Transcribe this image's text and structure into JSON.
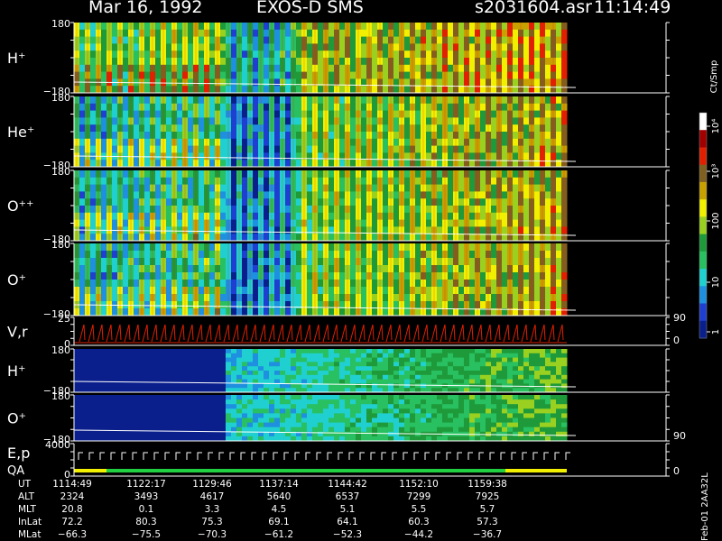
{
  "header": {
    "date": "Mar 16, 1992",
    "mission": "EXOS-D SMS",
    "file": "s2031604.asr",
    "time": "11:14:49"
  },
  "colorbar": {
    "unit": "Ct/Smp",
    "ticks": [
      "1",
      "10",
      "100",
      "10³",
      "10⁴"
    ],
    "colors": [
      "#0a1f8c",
      "#1f3fd0",
      "#1f8fe0",
      "#20d0d0",
      "#28c060",
      "#1e9a3a",
      "#9ad020",
      "#f0f000",
      "#c8a000",
      "#806020",
      "#e02000",
      "#a00000",
      "#ffffff"
    ]
  },
  "panels": [
    {
      "label": "H⁺",
      "ymax": "180",
      "ymin": "−180",
      "kind": "spec",
      "variant": 0
    },
    {
      "label": "He⁺",
      "ymax": "180",
      "ymin": "−180",
      "kind": "spec",
      "variant": 1
    },
    {
      "label": "O⁺⁺",
      "ymax": "180",
      "ymin": "−180",
      "kind": "spec",
      "variant": 2
    },
    {
      "label": "O⁺",
      "ymax": "180",
      "ymin": "−180",
      "kind": "spec",
      "variant": 3
    },
    {
      "label": "V,r",
      "ymax": "25",
      "ymin": "0",
      "kind": "line",
      "right_top": "90",
      "right_bottom": "0"
    },
    {
      "label": "H⁺",
      "ymax": "180",
      "ymin": "−180",
      "kind": "spec2",
      "variant": 4
    },
    {
      "label": "O⁺",
      "ymax": "180",
      "ymin": "−180",
      "kind": "spec2",
      "variant": 5,
      "right_bottom": "90"
    },
    {
      "label": "E,p",
      "label2": "QA",
      "ymax": "4000",
      "ymin": "0",
      "kind": "qa",
      "right_bottom": "0"
    }
  ],
  "ephemeris": {
    "rows": [
      {
        "name": "UT",
        "values": [
          "1114:49",
          "1122:17",
          "1129:46",
          "1137:14",
          "1144:42",
          "1152:10",
          "1159:38"
        ]
      },
      {
        "name": "ALT",
        "values": [
          "2324",
          "3493",
          "4617",
          "5640",
          "6537",
          "7299",
          "7925"
        ]
      },
      {
        "name": "MLT",
        "values": [
          "20.8",
          "0.1",
          "3.3",
          "4.5",
          "5.1",
          "5.5",
          "5.7"
        ]
      },
      {
        "name": "InLat",
        "values": [
          "72.2",
          "80.3",
          "75.3",
          "69.1",
          "64.1",
          "60.3",
          "57.3"
        ]
      },
      {
        "name": "MLat",
        "values": [
          "−66.3",
          "−75.5",
          "−70.3",
          "−61.2",
          "−52.3",
          "−44.2",
          "−36.7"
        ]
      }
    ]
  },
  "footer": {
    "stamp": "Feb-01 2AA32L"
  },
  "chart_data": {
    "type": "heatmap",
    "title": "Mar 16, 1992   EXOS-D SMS",
    "x_axis": "UT",
    "x_ticks": [
      "1114:49",
      "1122:17",
      "1129:46",
      "1137:14",
      "1144:42",
      "1152:10",
      "1159:38"
    ],
    "panels": [
      "H⁺",
      "He⁺",
      "O⁺⁺",
      "O⁺",
      "V,r",
      "H⁺",
      "O⁺",
      "E,p / QA"
    ],
    "pitch_angle_range": [
      -180,
      180
    ],
    "color_scale": "log",
    "color_range": [
      1,
      10000
    ],
    "color_unit": "Ct/Smp"
  }
}
